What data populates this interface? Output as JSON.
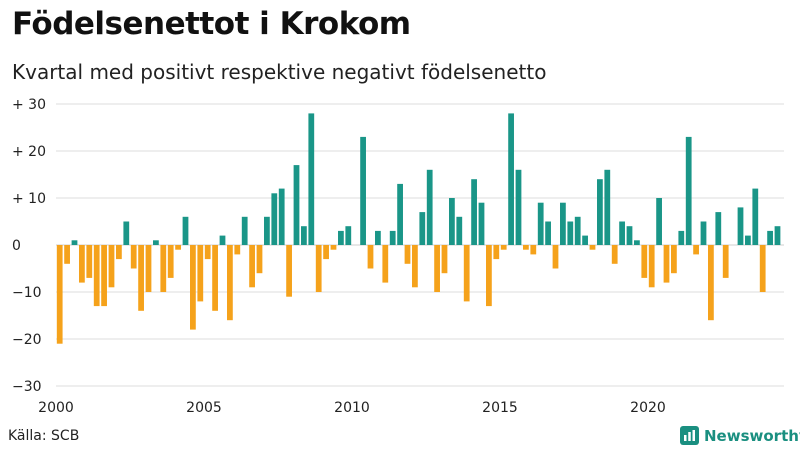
{
  "title": "Födelsenettot i Krokom",
  "subtitle": "Kvartal med positivt respektive negativt födelsenetto",
  "source": "Källa: SCB",
  "brand": "Newsworthy",
  "colors": {
    "positive": "#1a9688",
    "negative": "#f5a21b",
    "grid": "#dddddd",
    "brand": "#1a8f80"
  },
  "chart_data": {
    "type": "bar",
    "title": "Födelsenettot i Krokom",
    "subtitle": "Kvartal med positivt respektive negativt födelsenetto",
    "xlabel": "",
    "ylabel": "",
    "ylim": [
      -30,
      30
    ],
    "y_ticks": [
      30,
      20,
      10,
      0,
      -10,
      -20,
      -30
    ],
    "y_tick_labels": [
      "+ 30",
      "+ 20",
      "+ 10",
      "0",
      "−10",
      "−20",
      "−30"
    ],
    "x_ticks": [
      2000,
      2005,
      2010,
      2015,
      2020
    ],
    "x_tick_labels": [
      "2000",
      "2005",
      "2010",
      "2015",
      "2020"
    ],
    "start_year": 2000,
    "periods_per_year": 4,
    "values": [
      -21,
      -4,
      1,
      -8,
      -7,
      -13,
      -13,
      -9,
      -3,
      5,
      -5,
      -14,
      -10,
      1,
      -10,
      -7,
      -1,
      6,
      -18,
      -12,
      -3,
      -14,
      2,
      -16,
      -2,
      6,
      -9,
      -6,
      6,
      11,
      12,
      -11,
      17,
      4,
      28,
      -10,
      -3,
      -1,
      3,
      4,
      0,
      23,
      -5,
      3,
      -8,
      3,
      13,
      -4,
      -9,
      7,
      16,
      -10,
      -6,
      10,
      6,
      -12,
      14,
      9,
      -13,
      -3,
      -1,
      28,
      16,
      -1,
      -2,
      9,
      5,
      -5,
      9,
      5,
      6,
      2,
      -1,
      14,
      16,
      -4,
      5,
      4,
      1,
      -7,
      -9,
      10,
      -8,
      -6,
      3,
      23,
      -2,
      5,
      -16,
      7,
      -7,
      0,
      8,
      2,
      12,
      -10,
      3,
      4
    ]
  }
}
